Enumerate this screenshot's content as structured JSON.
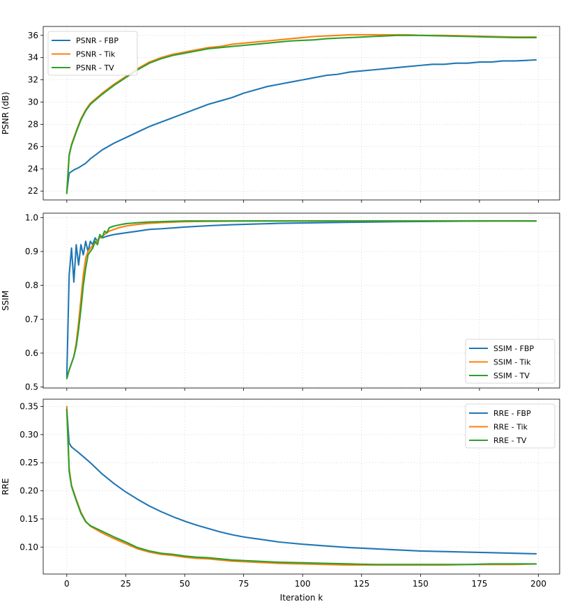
{
  "chart_data": [
    {
      "type": "line",
      "title": "",
      "xlabel": "",
      "ylabel": "PSNR (dB)",
      "xlim": [
        -10,
        209
      ],
      "ylim": [
        21.2,
        36.8
      ],
      "xticks": [
        0,
        25,
        50,
        75,
        100,
        125,
        150,
        175,
        200
      ],
      "show_xtick_labels": false,
      "yticks": [
        22,
        24,
        26,
        28,
        30,
        32,
        34,
        36
      ],
      "ytick_labels": [
        "22",
        "24",
        "26",
        "28",
        "30",
        "32",
        "34",
        "36"
      ],
      "grid": true,
      "legend_loc": "upper-left",
      "series": [
        {
          "name": "PSNR - FBP",
          "color": "#1f77b4",
          "x": [
            0,
            1,
            3,
            5,
            8,
            10,
            15,
            20,
            25,
            30,
            35,
            40,
            45,
            50,
            55,
            60,
            65,
            70,
            75,
            80,
            85,
            90,
            95,
            100,
            105,
            110,
            115,
            120,
            125,
            130,
            135,
            140,
            145,
            150,
            155,
            160,
            165,
            170,
            175,
            180,
            185,
            190,
            195,
            199
          ],
          "y": [
            21.9,
            23.6,
            23.9,
            24.1,
            24.5,
            24.9,
            25.7,
            26.3,
            26.8,
            27.3,
            27.8,
            28.2,
            28.6,
            29.0,
            29.4,
            29.8,
            30.1,
            30.4,
            30.8,
            31.1,
            31.4,
            31.6,
            31.8,
            32.0,
            32.2,
            32.4,
            32.5,
            32.7,
            32.8,
            32.9,
            33.0,
            33.1,
            33.2,
            33.3,
            33.4,
            33.4,
            33.5,
            33.5,
            33.6,
            33.6,
            33.7,
            33.7,
            33.75,
            33.8
          ]
        },
        {
          "name": "PSNR - Tik",
          "color": "#ff7f0e",
          "x": [
            0,
            1,
            2,
            4,
            6,
            8,
            10,
            15,
            20,
            25,
            30,
            35,
            40,
            45,
            50,
            55,
            60,
            65,
            70,
            75,
            80,
            85,
            90,
            95,
            100,
            105,
            110,
            115,
            120,
            125,
            130,
            135,
            140,
            145,
            150,
            160,
            170,
            180,
            190,
            199
          ],
          "y": [
            21.8,
            25.3,
            26.2,
            27.4,
            28.5,
            29.3,
            29.9,
            30.8,
            31.6,
            32.3,
            33.0,
            33.6,
            34.0,
            34.3,
            34.5,
            34.7,
            34.9,
            35.0,
            35.2,
            35.3,
            35.4,
            35.5,
            35.6,
            35.7,
            35.8,
            35.9,
            35.95,
            36.0,
            36.05,
            36.05,
            36.05,
            36.05,
            36.05,
            36.05,
            36.0,
            36.0,
            35.95,
            35.9,
            35.85,
            35.85
          ]
        },
        {
          "name": "PSNR - TV",
          "color": "#2ca02c",
          "x": [
            0,
            1,
            2,
            4,
            6,
            8,
            10,
            15,
            20,
            25,
            30,
            35,
            40,
            45,
            50,
            55,
            60,
            65,
            70,
            75,
            80,
            85,
            90,
            95,
            100,
            105,
            110,
            115,
            120,
            125,
            130,
            135,
            140,
            145,
            150,
            160,
            170,
            180,
            190,
            199
          ],
          "y": [
            21.8,
            25.2,
            26.1,
            27.3,
            28.4,
            29.2,
            29.8,
            30.7,
            31.5,
            32.2,
            32.9,
            33.5,
            33.9,
            34.2,
            34.4,
            34.6,
            34.8,
            34.9,
            35.0,
            35.1,
            35.2,
            35.3,
            35.4,
            35.5,
            35.55,
            35.6,
            35.7,
            35.75,
            35.8,
            35.85,
            35.9,
            35.95,
            36.0,
            36.0,
            36.0,
            35.95,
            35.9,
            35.85,
            35.8,
            35.8
          ]
        }
      ]
    },
    {
      "type": "line",
      "title": "",
      "xlabel": "",
      "ylabel": "SSIM",
      "xlim": [
        -10,
        209
      ],
      "ylim": [
        0.497,
        1.013
      ],
      "xticks": [
        0,
        25,
        50,
        75,
        100,
        125,
        150,
        175,
        200
      ],
      "show_xtick_labels": false,
      "yticks": [
        0.5,
        0.6,
        0.7,
        0.8,
        0.9,
        1.0
      ],
      "ytick_labels": [
        "0.5",
        "0.6",
        "0.7",
        "0.8",
        "0.9",
        "1.0"
      ],
      "grid": true,
      "legend_loc": "lower-right",
      "series": [
        {
          "name": "SSIM - FBP",
          "color": "#1f77b4",
          "x": [
            0,
            1,
            2,
            3,
            4,
            5,
            6,
            7,
            8,
            9,
            10,
            11,
            12,
            13,
            14,
            15,
            17,
            20,
            25,
            30,
            35,
            40,
            50,
            60,
            70,
            80,
            90,
            100,
            120,
            140,
            160,
            180,
            199
          ],
          "y": [
            0.53,
            0.83,
            0.91,
            0.81,
            0.92,
            0.86,
            0.92,
            0.89,
            0.93,
            0.9,
            0.93,
            0.92,
            0.94,
            0.93,
            0.945,
            0.94,
            0.945,
            0.95,
            0.955,
            0.96,
            0.965,
            0.967,
            0.972,
            0.976,
            0.979,
            0.981,
            0.983,
            0.984,
            0.986,
            0.988,
            0.989,
            0.99,
            0.99
          ]
        },
        {
          "name": "SSIM - Tik",
          "color": "#ff7f0e",
          "x": [
            0,
            1,
            2,
            3,
            4,
            5,
            6,
            7,
            8,
            9,
            10,
            12,
            14,
            16,
            18,
            20,
            22,
            25,
            30,
            35,
            40,
            50,
            60,
            80,
            100,
            120,
            150,
            180,
            199
          ],
          "y": [
            0.525,
            0.55,
            0.57,
            0.59,
            0.63,
            0.69,
            0.76,
            0.83,
            0.88,
            0.9,
            0.91,
            0.925,
            0.94,
            0.95,
            0.96,
            0.965,
            0.97,
            0.975,
            0.98,
            0.983,
            0.985,
            0.988,
            0.989,
            0.99,
            0.99,
            0.99,
            0.99,
            0.99,
            0.99
          ]
        },
        {
          "name": "SSIM - TV",
          "color": "#2ca02c",
          "x": [
            0,
            1,
            2,
            3,
            4,
            5,
            6,
            7,
            8,
            9,
            10,
            11,
            12,
            13,
            14,
            15,
            16,
            17,
            18,
            20,
            22,
            25,
            30,
            35,
            40,
            50,
            60,
            80,
            100,
            120,
            150,
            180,
            199
          ],
          "y": [
            0.525,
            0.55,
            0.57,
            0.59,
            0.62,
            0.67,
            0.73,
            0.8,
            0.85,
            0.89,
            0.9,
            0.91,
            0.93,
            0.92,
            0.95,
            0.94,
            0.96,
            0.955,
            0.97,
            0.975,
            0.978,
            0.982,
            0.985,
            0.987,
            0.988,
            0.99,
            0.99,
            0.99,
            0.99,
            0.99,
            0.99,
            0.99,
            0.99
          ]
        }
      ]
    },
    {
      "type": "line",
      "title": "",
      "xlabel": "Iteration k",
      "ylabel": "RRE",
      "xlim": [
        -10,
        209
      ],
      "ylim": [
        0.052,
        0.363
      ],
      "xticks": [
        0,
        25,
        50,
        75,
        100,
        125,
        150,
        175,
        200
      ],
      "show_xtick_labels": true,
      "xtick_labels": [
        "0",
        "25",
        "50",
        "75",
        "100",
        "125",
        "150",
        "175",
        "200"
      ],
      "yticks": [
        0.1,
        0.15,
        0.2,
        0.25,
        0.3,
        0.35
      ],
      "ytick_labels": [
        "0.10",
        "0.15",
        "0.20",
        "0.25",
        "0.30",
        "0.35"
      ],
      "grid": true,
      "legend_loc": "upper-right",
      "series": [
        {
          "name": "RRE - FBP",
          "color": "#1f77b4",
          "x": [
            0,
            1,
            2,
            5,
            10,
            15,
            20,
            25,
            30,
            35,
            40,
            45,
            50,
            55,
            60,
            65,
            70,
            75,
            80,
            85,
            90,
            95,
            100,
            110,
            120,
            130,
            140,
            150,
            160,
            170,
            180,
            190,
            199
          ],
          "y": [
            0.345,
            0.285,
            0.278,
            0.268,
            0.25,
            0.23,
            0.213,
            0.198,
            0.185,
            0.173,
            0.163,
            0.154,
            0.146,
            0.139,
            0.133,
            0.127,
            0.122,
            0.118,
            0.115,
            0.112,
            0.109,
            0.107,
            0.105,
            0.102,
            0.099,
            0.097,
            0.095,
            0.093,
            0.092,
            0.091,
            0.09,
            0.089,
            0.088
          ]
        },
        {
          "name": "RRE - Tik",
          "color": "#ff7f0e",
          "x": [
            0,
            1,
            2,
            4,
            6,
            8,
            10,
            15,
            20,
            25,
            30,
            35,
            40,
            45,
            50,
            55,
            60,
            65,
            70,
            75,
            80,
            90,
            100,
            110,
            120,
            130,
            140,
            150,
            160,
            170,
            180,
            190,
            199
          ],
          "y": [
            0.35,
            0.24,
            0.21,
            0.185,
            0.162,
            0.146,
            0.137,
            0.125,
            0.115,
            0.106,
            0.097,
            0.091,
            0.087,
            0.085,
            0.082,
            0.08,
            0.079,
            0.077,
            0.075,
            0.074,
            0.073,
            0.071,
            0.07,
            0.069,
            0.068,
            0.068,
            0.068,
            0.068,
            0.068,
            0.069,
            0.069,
            0.069,
            0.07
          ]
        },
        {
          "name": "RRE - TV",
          "color": "#2ca02c",
          "x": [
            0,
            1,
            2,
            4,
            6,
            8,
            10,
            15,
            20,
            25,
            30,
            35,
            40,
            45,
            50,
            55,
            60,
            65,
            70,
            75,
            80,
            90,
            100,
            110,
            120,
            130,
            140,
            150,
            160,
            170,
            180,
            190,
            199
          ],
          "y": [
            0.345,
            0.235,
            0.208,
            0.183,
            0.16,
            0.145,
            0.138,
            0.128,
            0.118,
            0.109,
            0.099,
            0.093,
            0.089,
            0.087,
            0.084,
            0.082,
            0.081,
            0.079,
            0.077,
            0.076,
            0.075,
            0.073,
            0.072,
            0.071,
            0.07,
            0.069,
            0.069,
            0.069,
            0.069,
            0.069,
            0.07,
            0.07,
            0.07
          ]
        }
      ]
    }
  ]
}
